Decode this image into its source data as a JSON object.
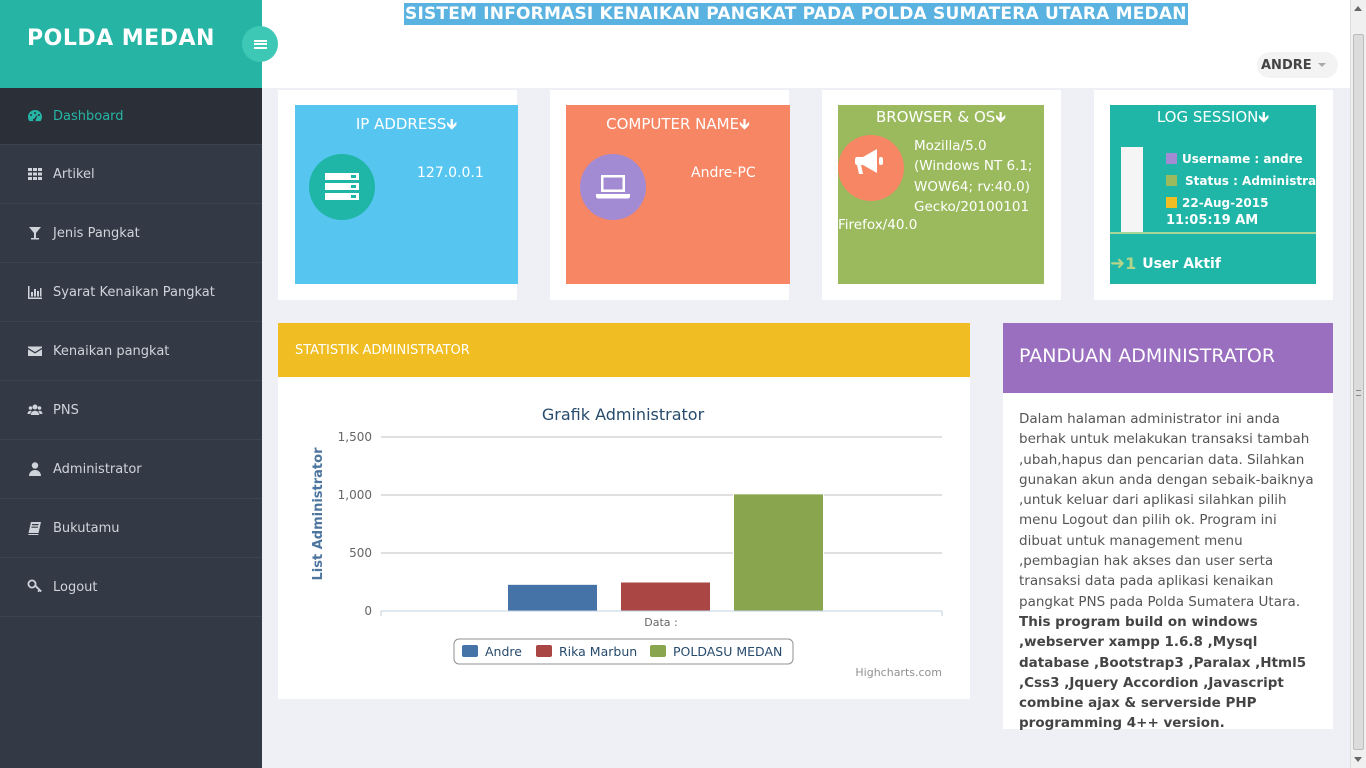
{
  "brand": {
    "title": "POLDA MEDAN"
  },
  "header": {
    "system_title": "SISTEM INFORMASI KENAIKAN PANGKAT PADA POLDA SUMATERA UTARA MEDAN",
    "user": "ANDRE"
  },
  "sidebar": {
    "items": [
      {
        "label": "Dashboard",
        "icon": "dashboard-icon",
        "active": true
      },
      {
        "label": "Artikel",
        "icon": "grid-icon"
      },
      {
        "label": "Jenis Pangkat",
        "icon": "glass-icon"
      },
      {
        "label": "Syarat Kenaikan Pangkat",
        "icon": "bar-chart-icon"
      },
      {
        "label": "Kenaikan pangkat",
        "icon": "envelope-icon"
      },
      {
        "label": "PNS",
        "icon": "users-icon"
      },
      {
        "label": "Administrator",
        "icon": "user-icon"
      },
      {
        "label": "Bukutamu",
        "icon": "book-icon"
      },
      {
        "label": "Logout",
        "icon": "key-icon"
      }
    ]
  },
  "cards": {
    "ip": {
      "title": "IP ADDRESS",
      "value": "127.0.0.1",
      "color": "#56c5ef"
    },
    "computer": {
      "title": "COMPUTER NAME",
      "value": "Andre-PC",
      "color": "#f68664"
    },
    "browser": {
      "title": "BROWSER & OS",
      "lines": [
        "Mozilla/5.0",
        "(Windows NT 6.1;",
        "WOW64; rv:40.0)",
        "Gecko/20100101",
        "Firefox/40.0"
      ],
      "color": "#9bba5d"
    },
    "session": {
      "title": "LOG SESSION",
      "username": "Username : andre",
      "status": "Status : Administrator",
      "date": "22-Aug-2015",
      "time": "11:05:19 AM",
      "active_count": "1",
      "active_label": "User Aktif",
      "color": "#1fb6a8"
    }
  },
  "statistic": {
    "title": "STATISTIK ADMINISTRATOR",
    "credit": "Highcharts.com"
  },
  "chart_data": {
    "type": "bar",
    "title": "Grafik Administrator",
    "ylabel": "List Administrator",
    "xlabel": "Data :",
    "ylim": [
      0,
      1500
    ],
    "yticks": [
      "0",
      "500",
      "1,000",
      "1,500"
    ],
    "series": [
      {
        "name": "Andre",
        "value": 230,
        "color": "#4572a7"
      },
      {
        "name": "Rika Marbun",
        "value": 250,
        "color": "#aa4643"
      },
      {
        "name": "POLDASU MEDAN",
        "value": 1010,
        "color": "#89a54e"
      }
    ]
  },
  "guide": {
    "title": "PANDUAN ADMINISTRATOR",
    "text": "Dalam halaman administrator ini anda berhak untuk melakukan transaksi tambah ,ubah,hapus dan pencarian data. Silahkan gunakan akun anda dengan sebaik-baiknya ,untuk keluar dari aplikasi silahkan pilih menu Logout dan pilih ok. Program ini dibuat untuk management menu ,pembagian hak akses dan user serta transaksi data pada aplikasi kenaikan pangkat PNS pada Polda Sumatera Utara.",
    "bold": "This program build on windows ,webserver xampp 1.6.8 ,Mysql database ,Bootstrap3 ,Paralax ,Html5 ,Css3 ,Jquery Accordion ,Javascript combine ajax & serverside PHP programming 4++ version."
  }
}
